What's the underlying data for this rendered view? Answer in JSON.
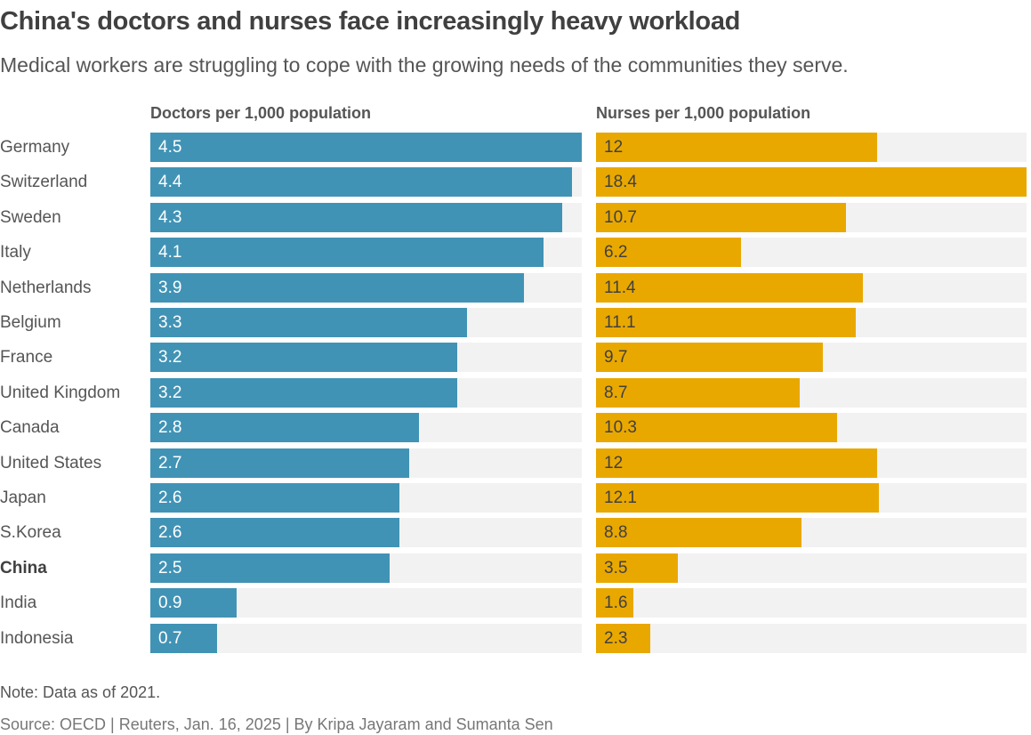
{
  "title": "China's doctors and nurses face increasingly heavy workload",
  "subtitle": "Medical workers are struggling to cope with the growing needs of the communities they serve.",
  "note": "Note: Data as of 2021.",
  "source": "Source: OECD | Reuters, Jan. 16, 2025 | By Kripa Jayaram and Sumanta Sen",
  "colors": {
    "doctors": "#4193b5",
    "nurses": "#e9a800",
    "track": "#f2f2f2"
  },
  "highlight": "China",
  "chart_data": [
    {
      "type": "bar",
      "orientation": "horizontal",
      "title": "Doctors per 1,000 population",
      "categories": [
        "Germany",
        "Switzerland",
        "Sweden",
        "Italy",
        "Netherlands",
        "Belgium",
        "France",
        "United Kingdom",
        "Canada",
        "United States",
        "Japan",
        "S.Korea",
        "China",
        "India",
        "Indonesia"
      ],
      "values": [
        4.5,
        4.4,
        4.3,
        4.1,
        3.9,
        3.3,
        3.2,
        3.2,
        2.8,
        2.7,
        2.6,
        2.6,
        2.5,
        0.9,
        0.7
      ],
      "xlim": [
        0,
        4.5
      ],
      "grid": false
    },
    {
      "type": "bar",
      "orientation": "horizontal",
      "title": "Nurses per 1,000 population",
      "categories": [
        "Germany",
        "Switzerland",
        "Sweden",
        "Italy",
        "Netherlands",
        "Belgium",
        "France",
        "United Kingdom",
        "Canada",
        "United States",
        "Japan",
        "S.Korea",
        "China",
        "India",
        "Indonesia"
      ],
      "values": [
        12,
        18.4,
        10.7,
        6.2,
        11.4,
        11.1,
        9.7,
        8.7,
        10.3,
        12,
        12.1,
        8.8,
        3.5,
        1.6,
        2.3
      ],
      "xlim": [
        0,
        18.4
      ],
      "grid": false
    }
  ]
}
